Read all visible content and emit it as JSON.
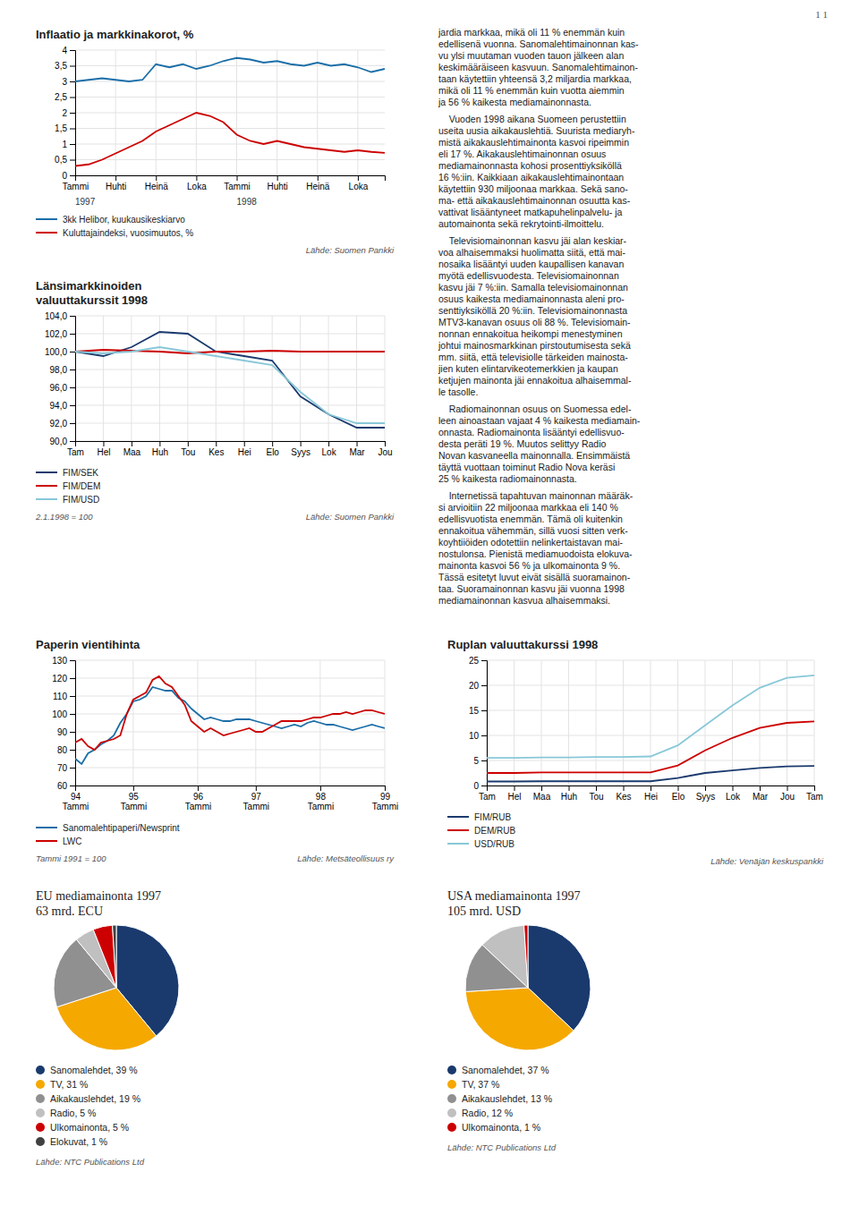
{
  "page_number": "1 1",
  "text_paragraphs": [
    "jardia markkaa, mikä oli 11 % enemmän kuin\nedellisenä vuonna. Sanomalehtimainonnan kas-\nvu ylsi muutaman vuoden tauon jälkeen alan\nkeskimääräiseen kasvuun. Sanomalehtimainon-\ntaan käytettiin yhteensä 3,2 miljardia markkaa,\nmikä oli 11 % enemmän kuin vuotta aiemmin\nja 56 % kaikesta mediamainonnasta.",
    "    Vuoden 1998 aikana Suomeen perustettiin\nuseita uusia aikakauslehtiä. Suurista mediaryh-\nmistä aikakauslehtimainonta kasvoi ripeimmin\neli 17 %. Aikakauslehtimainonnan osuus\nmediamainonnasta kohosi prosenttiyksiköllä\n16 %:iin. Kaikkiaan aikakauslehtimainontaan\nkäytettiin 930 miljoonaa markkaa. Sekä sano-\nma- että aikakauslehtimainonnan osuutta kas-\nvattivat lisääntyneet matkapuhelinpalvelu- ja\nautomainonta sekä rekrytointi-ilmoittelu.",
    "    Televisiomainonnan kasvu jäi alan keskiar-\nvoa alhaisemmaksi huolimatta siitä, että mai-\nnosaika lisääntyi uuden kaupallisen kanavan\nmyötä edellisvuodesta. Televisiomainonnan\nkasvu jäi 7 %:iin. Samalla televisiomainonnan\nosuus kaikesta mediamainonnasta aleni pro-\nsenttiyksiköllä 20 %:iin. Televisiomainonnasta\nMTV3-kanavan osuus oli 88 %. Televisiomain-\nnonnan ennakoitua heikompi menestyminen\njohtui mainosmarkkinan pirstoutumisesta sekä\nmm. siitä, että televisiolle tärkeiden mainosta-\njien kuten elintarvikeotemerkkien ja kaupan\nketjujen mainonta jäi ennakoitua alhaisemmal-\nle tasolle.",
    "    Radiomainonnan osuus on Suomessa edel-\nleen ainoastaan vajaat 4 % kaikesta mediamain-\nonnasta. Radiomainonta lisääntyi edellisvuo-\ndesta peräti 19 %. Muutos selittyy Radio\nNovan kasvaneella mainonnalla. Ensimmäistä\ntäyttä vuottaan toiminut Radio Nova keräsi\n25 % kaikesta radiomainonnasta.",
    "    Internetissä tapahtuvan mainonnan määräk-\nsi arvioitiin 22 miljoonaa markkaa eli 140 %\nedellisvuotista enemmän. Tämä oli kuitenkin\nennakoitua vähemmän, sillä vuosi sitten verk-\nkoyhtiiöiden odotettiin nelinkertaistavan mai-\nnostulonsa. Pienistä mediamuodoista elokuva-\nmainonta kasvoi 56 % ja ulkomainonta 9 %.\nTässä esitetyt luvut eivät sisällä suoramainon-\ntaa. Suoramainonnan kasvu jäi vuonna 1998\nmediamainonnan kasvua alhaisemmaksi."
  ],
  "chart_data": [
    {
      "type": "line",
      "title": "Inflaatio ja markkinakorot, %",
      "categories": [
        "Tammi",
        null,
        null,
        "Huhti",
        null,
        null,
        "Heinä",
        null,
        null,
        "Loka",
        null,
        null,
        "Tammi",
        null,
        null,
        "Huhti",
        null,
        null,
        "Heinä",
        null,
        null,
        "Loka",
        null,
        null
      ],
      "series": [
        {
          "name": "3kk Helibor, kuukausikeskiarvo",
          "color": "#1a6ea8",
          "values": [
            3.0,
            3.05,
            3.1,
            3.05,
            3.0,
            3.05,
            3.55,
            3.45,
            3.55,
            3.4,
            3.5,
            3.65,
            3.75,
            3.7,
            3.6,
            3.65,
            3.55,
            3.5,
            3.6,
            3.5,
            3.55,
            3.45,
            3.3,
            3.4
          ]
        },
        {
          "name": "Kuluttajaindeksi, vuosimuutos, %",
          "color": "#cc0000",
          "values": [
            0.3,
            0.35,
            0.5,
            0.7,
            0.9,
            1.1,
            1.4,
            1.6,
            1.8,
            2.0,
            1.9,
            1.7,
            1.3,
            1.1,
            1.0,
            1.1,
            1.0,
            0.9,
            0.85,
            0.8,
            0.75,
            0.8,
            0.75,
            0.72
          ]
        }
      ],
      "ylim": [
        0,
        4
      ],
      "yticks": [
        0,
        {
          "value": 0.5,
          "label": "0,5"
        },
        1,
        {
          "value": 1.5,
          "label": "1,5"
        },
        2,
        {
          "value": 2.5,
          "label": "2,5"
        },
        3,
        {
          "value": 3.5,
          "label": "3,5"
        },
        4
      ],
      "grid": true,
      "legend": "bottom",
      "annotations": [
        "1997",
        "1998"
      ],
      "source": "Lähde: Suomen Pankki"
    },
    {
      "type": "line",
      "title": "Paperin vientihinta",
      "categories": [
        "94\nTammi",
        null,
        null,
        null,
        null,
        null,
        null,
        null,
        null,
        "95\nTammi",
        null,
        null,
        null,
        null,
        null,
        null,
        null,
        null,
        null,
        "96\nTammi",
        null,
        null,
        null,
        null,
        null,
        null,
        null,
        null,
        "97\nTammi",
        null,
        null,
        null,
        null,
        null,
        null,
        null,
        null,
        null,
        "98\nTammi",
        null,
        null,
        null,
        null,
        null,
        null,
        null,
        null,
        null,
        "99\nTammi"
      ],
      "series": [
        {
          "name": "Sanomalehtipaperi/Newsprint",
          "color": "#1a6ea8",
          "values": [
            75,
            72,
            78,
            80,
            83,
            85,
            88,
            95,
            100,
            107,
            108,
            110,
            115,
            114,
            113,
            113,
            109,
            107,
            103,
            100,
            97,
            98,
            97,
            96,
            96,
            97,
            97,
            97,
            96,
            95,
            94,
            93,
            92,
            93,
            94,
            93,
            95,
            96,
            95,
            94,
            94,
            93,
            92,
            91,
            92,
            93,
            94,
            93,
            92
          ]
        },
        {
          "name": "LWC",
          "color": "#cc0000",
          "values": [
            84,
            86,
            82,
            80,
            84,
            85,
            86,
            88,
            100,
            108,
            110,
            112,
            119,
            121,
            117,
            115,
            110,
            105,
            96,
            93,
            90,
            92,
            90,
            88,
            89,
            90,
            91,
            92,
            90,
            90,
            92,
            94,
            96,
            96,
            96,
            96,
            97,
            98,
            98,
            99,
            100,
            100,
            101,
            100,
            101,
            102,
            102,
            101,
            100
          ]
        }
      ],
      "ylim": [
        60,
        130
      ],
      "yticks": [
        60,
        70,
        80,
        90,
        100,
        110,
        120,
        130
      ],
      "grid": true,
      "legend": "bottom",
      "note": "Tammi 1991 = 100",
      "source": "Lähde: Metsäteollisuus ry"
    },
    {
      "type": "line",
      "title": "Länsimarkkinoiden\nvaluuttakurssit 1998",
      "categories": [
        "Tam",
        "Hel",
        "Maa",
        "Huh",
        "Tou",
        "Kes",
        "Hei",
        "Elo",
        "Syys",
        "Lok",
        "Mar",
        "Jou"
      ],
      "series": [
        {
          "name": "FIM/SEK",
          "color": "#1a3a6e",
          "values": [
            100.0,
            99.5,
            100.5,
            102.2,
            102.0,
            100.0,
            99.5,
            99.0,
            95.0,
            93.0,
            91.5,
            91.5
          ]
        },
        {
          "name": "FIM/DEM",
          "color": "#cc0000",
          "values": [
            100.0,
            100.2,
            100.1,
            100.0,
            99.8,
            100.0,
            100.0,
            100.1,
            100.0,
            100.0,
            100.0,
            100.0
          ]
        },
        {
          "name": "FIM/USD",
          "color": "#88c8d8",
          "values": [
            100.0,
            99.8,
            100.0,
            100.5,
            100.0,
            99.5,
            99.0,
            98.5,
            95.5,
            93.0,
            92.0,
            92.0
          ]
        }
      ],
      "ylim": [
        90,
        104
      ],
      "yticks": [
        {
          "value": 90,
          "label": "90,0"
        },
        {
          "value": 92,
          "label": "92,0"
        },
        {
          "value": 94,
          "label": "94,0"
        },
        {
          "value": 96,
          "label": "96,0"
        },
        {
          "value": 98,
          "label": "98,0"
        },
        {
          "value": 100,
          "label": "100,0"
        },
        {
          "value": 102,
          "label": "102,0"
        },
        {
          "value": 104,
          "label": "104,0"
        }
      ],
      "grid": true,
      "legend": "bottom",
      "note": "2.1.1998 = 100",
      "source": "Lähde: Suomen Pankki"
    },
    {
      "type": "line",
      "title": "Ruplan valuuttakurssi 1998",
      "categories": [
        "Tam",
        "Hel",
        "Maa",
        "Huh",
        "Tou",
        "Kes",
        "Hei",
        "Elo",
        "Syys",
        "Lok",
        "Mar",
        "Jou",
        "Tam"
      ],
      "series": [
        {
          "name": "FIM/RUB",
          "color": "#1a3a6e",
          "values": [
            0.8,
            0.8,
            0.85,
            0.85,
            0.85,
            0.85,
            0.85,
            1.5,
            2.5,
            3.0,
            3.5,
            3.8,
            3.9
          ]
        },
        {
          "name": "DEM/RUB",
          "color": "#cc0000",
          "values": [
            2.5,
            2.5,
            2.6,
            2.6,
            2.6,
            2.6,
            2.6,
            4.0,
            7.0,
            9.5,
            11.5,
            12.5,
            12.8
          ]
        },
        {
          "name": "USD/RUB",
          "color": "#88c8d8",
          "values": [
            5.5,
            5.5,
            5.6,
            5.6,
            5.7,
            5.7,
            5.8,
            8.0,
            12.0,
            16.0,
            19.5,
            21.5,
            22.0
          ]
        }
      ],
      "ylim": [
        0,
        25
      ],
      "yticks": [
        0,
        5,
        10,
        15,
        20,
        25
      ],
      "grid": true,
      "legend": "bottom",
      "source": "Lähde: Venäjän keskuspankki"
    },
    {
      "type": "pie",
      "title": "EU mediamainonta 1997",
      "subtitle": "63 mrd. ECU",
      "categories": [
        "Sanomalehdet, 39 %",
        "TV, 31 %",
        "Aikakauslehdet, 19 %",
        "Radio, 5 %",
        "Ulkomainonta, 5 %",
        "Elokuvat, 1 %"
      ],
      "values": [
        39,
        31,
        19,
        5,
        5,
        1
      ],
      "colors": [
        "#1a3a6e",
        "#f5a800",
        "#909090",
        "#c0c0c0",
        "#cc0000",
        "#404040"
      ],
      "legend": "bottom",
      "source": "Lähde: NTC Publications Ltd"
    },
    {
      "type": "pie",
      "title": "USA mediamainonta 1997",
      "subtitle": "105 mrd. USD",
      "categories": [
        "Sanomalehdet, 37 %",
        "TV, 37 %",
        "Aikakauslehdet, 13 %",
        "Radio, 12 %",
        "Ulkomainonta, 1 %"
      ],
      "values": [
        37,
        37,
        13,
        12,
        1
      ],
      "colors": [
        "#1a3a6e",
        "#f5a800",
        "#909090",
        "#c0c0c0",
        "#cc0000"
      ],
      "legend": "bottom",
      "source": "Lähde: NTC Publications Ltd"
    }
  ]
}
